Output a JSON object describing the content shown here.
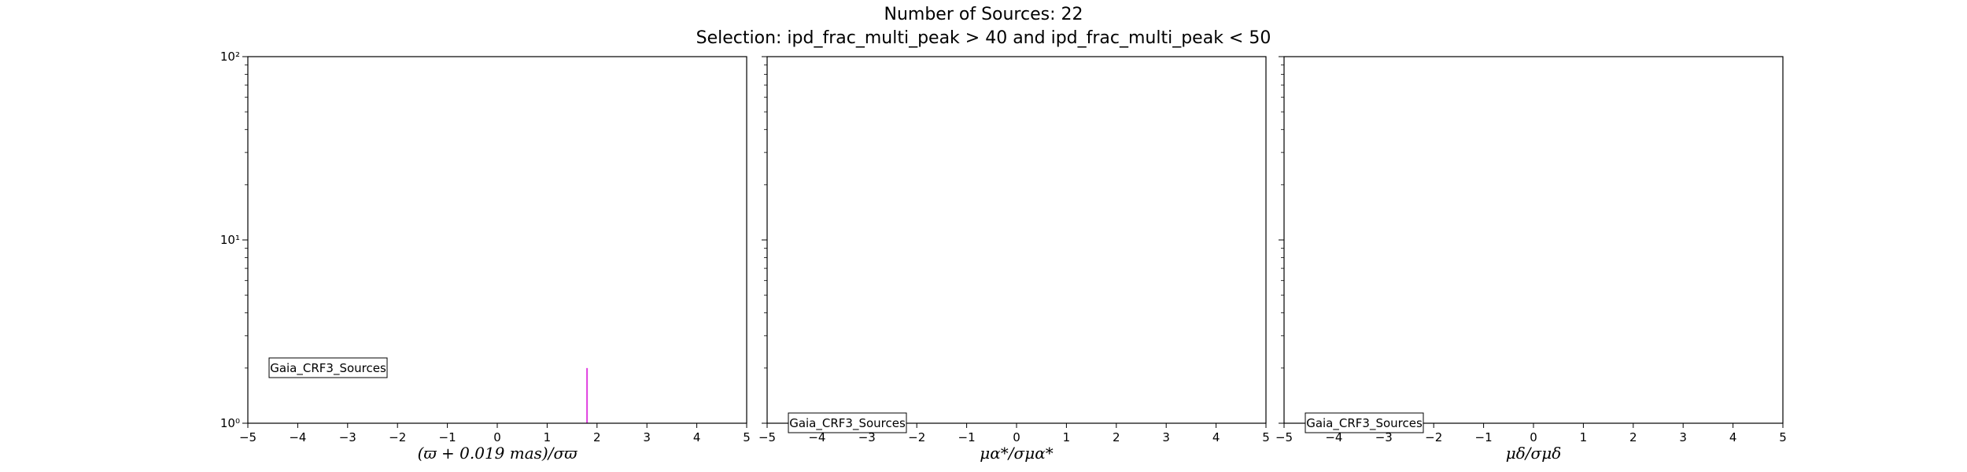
{
  "title_line1": "Number of Sources: 22",
  "title_line2": "Selection: ipd_frac_multi_peak > 40 and ipd_frac_multi_peak < 50",
  "chart_data": [
    {
      "type": "bar",
      "xlabel": "(ϖ + 0.019 mas)/σϖ",
      "xlim": [
        -5,
        5
      ],
      "ylim": [
        1,
        100
      ],
      "yscale": "log",
      "xticks": [
        -5,
        -4,
        -3,
        -2,
        -1,
        0,
        1,
        2,
        3,
        4,
        5
      ],
      "yticks": [
        {
          "value": 1,
          "label": "10⁰"
        },
        {
          "value": 10,
          "label": "10¹"
        },
        {
          "value": 100,
          "label": "10²"
        }
      ],
      "grid": false,
      "legend": {
        "text": "Gaia_CRF3_Sources",
        "placement": "lower-left"
      },
      "series": [
        {
          "color": "#e040e0",
          "x": [
            1.8
          ],
          "values": [
            2
          ]
        }
      ]
    },
    {
      "type": "bar",
      "xlabel": "μα*/σμα*",
      "xlim": [
        -5,
        5
      ],
      "ylim": [
        1,
        100
      ],
      "yscale": "log",
      "xticks": [
        -5,
        -4,
        -3,
        -2,
        -1,
        0,
        1,
        2,
        3,
        4,
        5
      ],
      "yticks": [
        {
          "value": 1,
          "label": ""
        },
        {
          "value": 10,
          "label": ""
        },
        {
          "value": 100,
          "label": ""
        }
      ],
      "grid": false,
      "legend": {
        "text": "Gaia_CRF3_Sources",
        "placement": "lower-left"
      },
      "series": [
        {
          "color": "#e040e0",
          "x": [],
          "values": []
        }
      ]
    },
    {
      "type": "bar",
      "xlabel": "μδ/σμδ",
      "xlim": [
        -5,
        5
      ],
      "ylim": [
        1,
        100
      ],
      "yscale": "log",
      "xticks": [
        -5,
        -4,
        -3,
        -2,
        -1,
        0,
        1,
        2,
        3,
        4,
        5
      ],
      "yticks": [
        {
          "value": 1,
          "label": ""
        },
        {
          "value": 10,
          "label": ""
        },
        {
          "value": 100,
          "label": ""
        }
      ],
      "grid": false,
      "legend": {
        "text": "Gaia_CRF3_Sources",
        "placement": "lower-left"
      },
      "series": [
        {
          "color": "#e040e0",
          "x": [],
          "values": []
        }
      ]
    }
  ]
}
